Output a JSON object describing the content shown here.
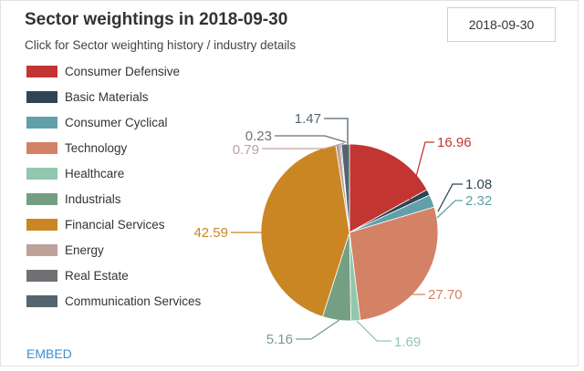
{
  "header": {
    "title": "Sector weightings in 2018-09-30",
    "subtitle": "Click for Sector weighting history / industry details",
    "date": "2018-09-30"
  },
  "footer": {
    "embed": "EMBED"
  },
  "chart_data": {
    "type": "pie",
    "title": "Sector weightings in 2018-09-30",
    "legend_position": "left",
    "slices": [
      {
        "name": "Consumer Defensive",
        "value": 16.96,
        "label": "16.96",
        "color": "#c23531"
      },
      {
        "name": "Basic Materials",
        "value": 1.08,
        "label": "1.08",
        "color": "#2f4554"
      },
      {
        "name": "Consumer Cyclical",
        "value": 2.32,
        "label": "2.32",
        "color": "#61a0a8"
      },
      {
        "name": "Technology",
        "value": 27.7,
        "label": "27.70",
        "color": "#d48265"
      },
      {
        "name": "Healthcare",
        "value": 1.69,
        "label": "1.69",
        "color": "#91c7ae"
      },
      {
        "name": "Industrials",
        "value": 5.16,
        "label": "5.16",
        "color": "#749f83"
      },
      {
        "name": "Financial Services",
        "value": 42.59,
        "label": "42.59",
        "color": "#ca8622"
      },
      {
        "name": "Energy",
        "value": 0.79,
        "label": "0.79",
        "color": "#bda29a"
      },
      {
        "name": "Real Estate",
        "value": 0.23,
        "label": "0.23",
        "color": "#6e7074"
      },
      {
        "name": "Communication Services",
        "value": 1.47,
        "label": "1.47",
        "color": "#546570"
      }
    ]
  }
}
